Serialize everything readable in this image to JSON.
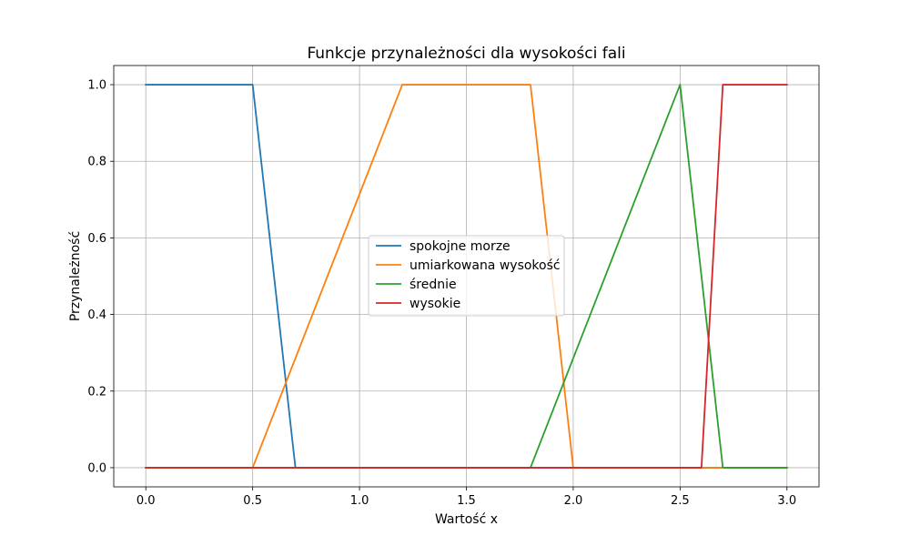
{
  "chart_data": {
    "type": "line",
    "title": "Funkcje przynależności dla wysokości fali",
    "xlabel": "Wartość x",
    "ylabel": "Przynależność",
    "xlim": [
      -0.15,
      3.15
    ],
    "ylim": [
      -0.05,
      1.05
    ],
    "xticks": [
      0.0,
      0.5,
      1.0,
      1.5,
      2.0,
      2.5,
      3.0
    ],
    "xtick_labels": [
      "0.0",
      "0.5",
      "1.0",
      "1.5",
      "2.0",
      "2.5",
      "3.0"
    ],
    "yticks": [
      0.0,
      0.2,
      0.4,
      0.6,
      0.8,
      1.0
    ],
    "ytick_labels": [
      "0.0",
      "0.2",
      "0.4",
      "0.6",
      "0.8",
      "1.0"
    ],
    "grid": true,
    "legend_position": "center",
    "series": [
      {
        "name": "spokojne morze",
        "color": "#1f77b4",
        "x": [
          0.0,
          0.5,
          0.7,
          3.0
        ],
        "y": [
          1.0,
          1.0,
          0.0,
          0.0
        ]
      },
      {
        "name": "umiarkowana wysokość",
        "color": "#ff7f0e",
        "x": [
          0.0,
          0.5,
          1.2,
          1.8,
          2.0,
          3.0
        ],
        "y": [
          0.0,
          0.0,
          1.0,
          1.0,
          0.0,
          0.0
        ]
      },
      {
        "name": "średnie",
        "color": "#2ca02c",
        "x": [
          0.0,
          1.8,
          2.5,
          2.7,
          3.0
        ],
        "y": [
          0.0,
          0.0,
          1.0,
          0.0,
          0.0
        ]
      },
      {
        "name": "wysokie",
        "color": "#d62728",
        "x": [
          0.0,
          2.6,
          2.7,
          3.0
        ],
        "y": [
          0.0,
          0.0,
          1.0,
          1.0
        ]
      }
    ]
  }
}
